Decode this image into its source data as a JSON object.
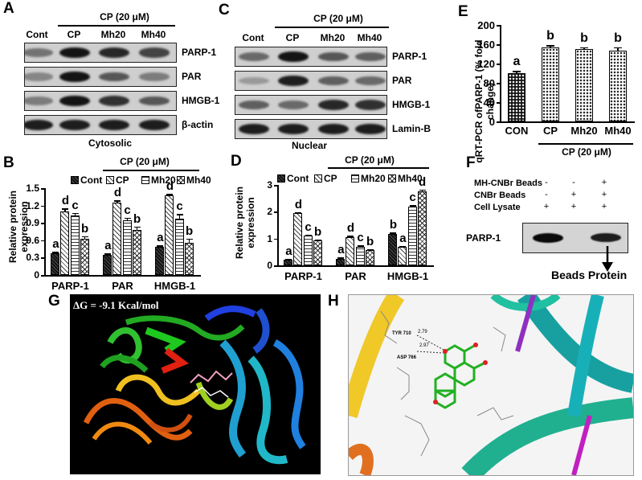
{
  "panels": {
    "A": {
      "label": "A",
      "group_label": "CP (20 μM)",
      "lanes": [
        "Cont",
        "CP",
        "Mh20",
        "Mh40"
      ],
      "rows": [
        "PARP-1",
        "PAR",
        "HMGB-1",
        "β-actin"
      ],
      "caption": "Cytosolic",
      "band_intensity": [
        [
          0.45,
          0.95,
          0.85,
          0.7
        ],
        [
          0.35,
          0.95,
          0.6,
          0.4
        ],
        [
          0.4,
          0.95,
          0.8,
          0.6
        ],
        [
          0.9,
          0.9,
          0.9,
          0.9
        ]
      ]
    },
    "C": {
      "label": "C",
      "group_label": "CP (20 μM)",
      "lanes": [
        "Cont",
        "CP",
        "Mh20",
        "Mh40"
      ],
      "rows": [
        "PARP-1",
        "PAR",
        "HMGB-1",
        "Lamin-B"
      ],
      "caption": "Nuclear",
      "band_intensity": [
        [
          0.5,
          0.95,
          0.6,
          0.55
        ],
        [
          0.25,
          0.9,
          0.55,
          0.5
        ],
        [
          0.55,
          0.5,
          0.85,
          0.8
        ],
        [
          0.9,
          0.9,
          0.9,
          0.9
        ]
      ]
    },
    "E": {
      "label": "E"
    },
    "B": {
      "label": "B"
    },
    "D": {
      "label": "D"
    },
    "F": {
      "label": "F",
      "row_labels": [
        "MH-CNBr Beads",
        "CNBr Beads",
        "Cell Lysate"
      ],
      "signs": [
        [
          "-",
          "-",
          "+"
        ],
        [
          "-",
          "+",
          "+"
        ],
        [
          "+",
          "+",
          "+"
        ]
      ],
      "blot_label": "PARP-1",
      "arrow_label": "Beads Protein",
      "band_intensity": [
        0.95,
        0,
        0.85
      ]
    },
    "G": {
      "label": "G",
      "dg_text": "ΔG = -9.1 Kcal/mol"
    },
    "H": {
      "label": "H",
      "residues": [
        "TYR 710",
        "ASP 766"
      ],
      "distances": [
        "2.79",
        "2.97"
      ]
    }
  },
  "chart_data": [
    {
      "id": "B",
      "type": "bar",
      "group_label": "CP (20 μM)",
      "legend": [
        "Cont",
        "CP",
        "Mh20",
        "Mh40"
      ],
      "categories": [
        "PARP-1",
        "PAR",
        "HMGB-1"
      ],
      "series": [
        {
          "name": "Cont",
          "values": [
            0.38,
            0.35,
            0.48
          ],
          "errors": [
            0.02,
            0.02,
            0.03
          ],
          "letters": [
            "a",
            "a",
            "a"
          ]
        },
        {
          "name": "CP",
          "values": [
            1.1,
            1.25,
            1.37
          ],
          "errors": [
            0.05,
            0.04,
            0.03
          ],
          "letters": [
            "d",
            "d",
            "d"
          ]
        },
        {
          "name": "Mh20",
          "values": [
            1.03,
            0.95,
            0.97
          ],
          "errors": [
            0.04,
            0.04,
            0.08
          ],
          "letters": [
            "c",
            "c",
            "c"
          ]
        },
        {
          "name": "Mh40",
          "values": [
            0.62,
            0.78,
            0.56
          ],
          "errors": [
            0.05,
            0.06,
            0.07
          ],
          "letters": [
            "b",
            "b",
            "b"
          ]
        }
      ],
      "ylabel": "Relative protein expression",
      "yticks": [
        "0",
        "0.3",
        "0.6",
        "0.9",
        "1.2",
        "1.5"
      ],
      "ylim": [
        0,
        1.5
      ]
    },
    {
      "id": "D",
      "type": "bar",
      "group_label": "CP (20 μM)",
      "legend": [
        "Cont",
        "CP",
        "Mh20",
        "Mh40"
      ],
      "categories": [
        "PARP-1",
        "PAR",
        "HMGB-1"
      ],
      "series": [
        {
          "name": "Cont",
          "values": [
            0.2,
            0.25,
            1.18
          ],
          "errors": [
            0.04,
            0.05,
            0.05
          ],
          "letters": [
            "a",
            "a",
            "b"
          ]
        },
        {
          "name": "CP",
          "values": [
            1.95,
            1.05,
            0.7
          ],
          "errors": [
            0.04,
            0.06,
            0.03
          ],
          "letters": [
            "d",
            "d",
            "a"
          ]
        },
        {
          "name": "Mh20",
          "values": [
            1.12,
            0.7,
            2.2
          ],
          "errors": [
            0.03,
            0.04,
            0.05
          ],
          "letters": [
            "c",
            "c",
            "c"
          ]
        },
        {
          "name": "Mh40",
          "values": [
            0.92,
            0.57,
            2.75
          ],
          "errors": [
            0.03,
            0.04,
            0.08
          ],
          "letters": [
            "b",
            "b",
            "d"
          ]
        }
      ],
      "ylabel": "Relative protein expression",
      "yticks": [
        "0",
        "1",
        "2",
        "3"
      ],
      "ylim": [
        0,
        3
      ]
    },
    {
      "id": "E",
      "type": "bar",
      "categories": [
        "CON",
        "CP",
        "Mh20",
        "Mh40"
      ],
      "values": [
        100,
        153,
        150,
        147
      ],
      "errors": [
        5,
        5,
        4,
        7
      ],
      "letters": [
        "a",
        "b",
        "b",
        "b"
      ],
      "group_label": "CP (20 μM)",
      "ylabel": "qRT-PCR ofPARP-1 (% fold change)",
      "yticks": [
        "0",
        "40",
        "80",
        "120",
        "160",
        "200"
      ],
      "ylim": [
        0,
        200
      ]
    }
  ]
}
